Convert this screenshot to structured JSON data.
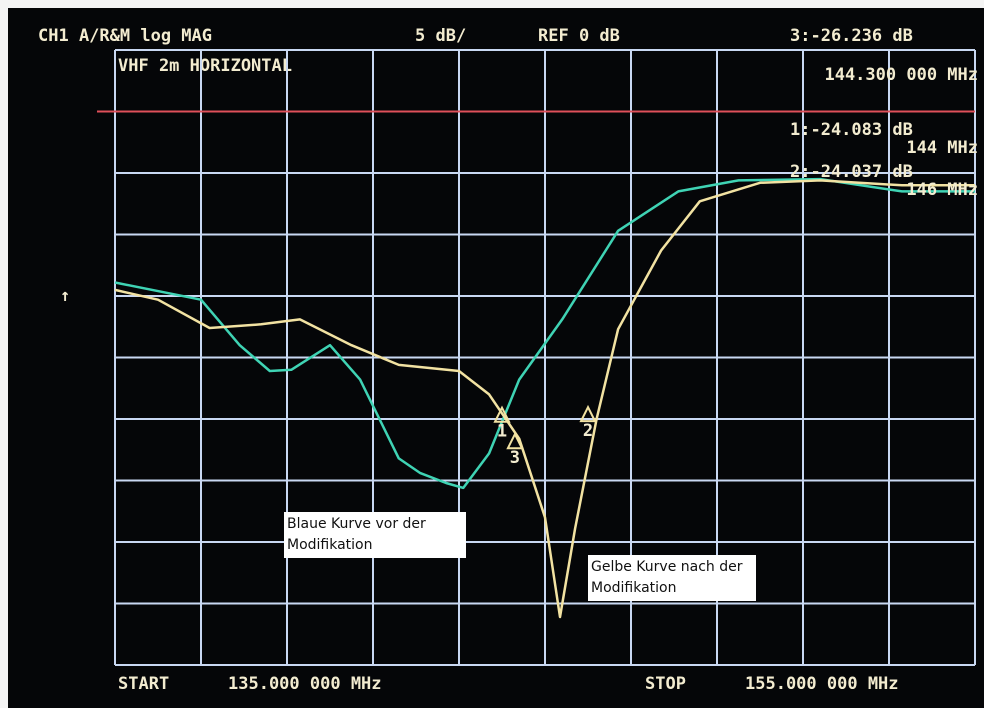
{
  "chart_data": {
    "type": "line",
    "header": {
      "channel": "CH1 A/R&M log MAG",
      "scale": "5 dB/",
      "reference": "REF 0 dB",
      "title": "VHF 2m HORIZONTAL"
    },
    "start_label": "START",
    "start": "135.000 000 MHz",
    "stop_label": "STOP",
    "stop": "155.000 000 MHz",
    "ref_level": 0,
    "xlim": [
      135,
      155
    ],
    "ylim": [
      -45,
      5
    ],
    "xticks": [
      135,
      137,
      139,
      141,
      143,
      145,
      147,
      149,
      151,
      153,
      155
    ],
    "yticks": [
      -45,
      -40,
      -35,
      -30,
      -25,
      -20,
      -15,
      -10,
      -5,
      0,
      5
    ],
    "grid": true,
    "series": [
      {
        "name": "Blaue Kurve vor der Modifikation",
        "color": "#3fd3b4",
        "x": [
          135,
          137,
          137.9,
          138.6,
          139.1,
          140,
          140.7,
          141.6,
          142.1,
          142.7,
          143.1,
          143.7,
          144.4,
          145.4,
          146.7,
          148.1,
          149.5,
          151.4,
          153.3,
          155
        ],
        "values": [
          -13.9,
          -15.3,
          -19,
          -21.1,
          -21,
          -19,
          -21.8,
          -28.2,
          -29.4,
          -30.2,
          -30.6,
          -27.8,
          -21.8,
          -16.9,
          -9.7,
          -6.5,
          -5.6,
          -5.5,
          -6.5,
          -6.5
        ]
      },
      {
        "name": "Gelbe Kurve nach der Modifikation",
        "color": "#f2e2a2",
        "x": [
          135,
          136,
          137.2,
          138.4,
          139.3,
          140.5,
          141.6,
          143,
          143.7,
          144.4,
          145,
          145.35,
          145.7,
          146.2,
          146.7,
          147.7,
          148.6,
          150,
          151.4,
          153.3,
          155
        ],
        "values": [
          -14.5,
          -15.3,
          -17.6,
          -17.3,
          -16.9,
          -19,
          -20.6,
          -21.1,
          -23,
          -26.6,
          -33,
          -41.1,
          -33.9,
          -25,
          -17.7,
          -11.3,
          -7.3,
          -5.8,
          -5.6,
          -6,
          -6
        ]
      }
    ],
    "markers": [
      {
        "label": "1",
        "x": 144,
        "value": -24.083,
        "readout": "1:-24.083 dB",
        "freq": "144 MHz"
      },
      {
        "label": "2",
        "x": 146,
        "value": -24.037,
        "readout": "2:-24.037 dB",
        "freq": "146 MHz"
      },
      {
        "label": "3",
        "x": 144.3,
        "value": -26.236,
        "readout": "3:-26.236 dB",
        "freq": "144.300 000 MHz"
      }
    ]
  }
}
